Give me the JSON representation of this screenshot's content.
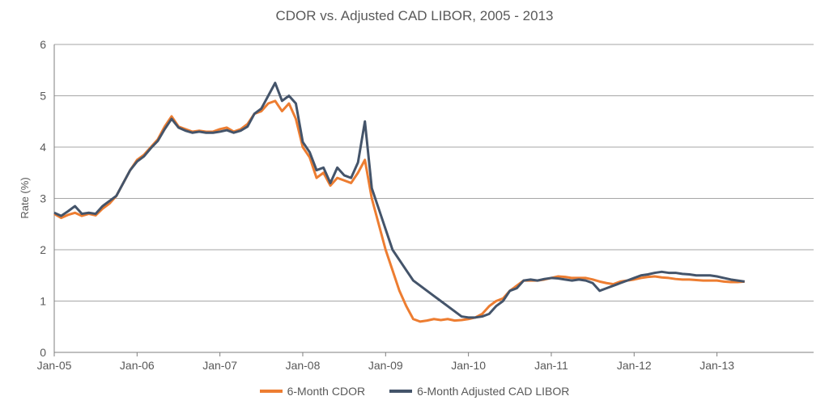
{
  "chart_data": {
    "type": "line",
    "title": "CDOR vs. Adjusted CAD LIBOR, 2005 - 2013",
    "xlabel": "",
    "ylabel": "Rate (%)",
    "ylim": [
      0,
      6
    ],
    "yticks": [
      "0",
      "1",
      "2",
      "3",
      "4",
      "5",
      "6"
    ],
    "xlim": [
      "2005-01",
      "2014-03"
    ],
    "xticks": [
      {
        "date": "2005-01",
        "label": "Jan-05"
      },
      {
        "date": "2006-01",
        "label": "Jan-06"
      },
      {
        "date": "2007-01",
        "label": "Jan-07"
      },
      {
        "date": "2008-01",
        "label": "Jan-08"
      },
      {
        "date": "2009-01",
        "label": "Jan-09"
      },
      {
        "date": "2010-01",
        "label": "Jan-10"
      },
      {
        "date": "2011-01",
        "label": "Jan-11"
      },
      {
        "date": "2012-01",
        "label": "Jan-12"
      },
      {
        "date": "2013-01",
        "label": "Jan-13"
      }
    ],
    "grid": true,
    "legend": "bottom",
    "series": [
      {
        "name": "6-Month CDOR",
        "color": "#ED7D31",
        "points": [
          [
            "2005-01",
            2.7
          ],
          [
            "2005-02",
            2.62
          ],
          [
            "2005-03",
            2.68
          ],
          [
            "2005-04",
            2.72
          ],
          [
            "2005-05",
            2.66
          ],
          [
            "2005-06",
            2.7
          ],
          [
            "2005-07",
            2.67
          ],
          [
            "2005-08",
            2.8
          ],
          [
            "2005-09",
            2.9
          ],
          [
            "2005-10",
            3.05
          ],
          [
            "2005-11",
            3.3
          ],
          [
            "2005-12",
            3.55
          ],
          [
            "2006-01",
            3.75
          ],
          [
            "2006-02",
            3.85
          ],
          [
            "2006-03",
            4.0
          ],
          [
            "2006-04",
            4.15
          ],
          [
            "2006-05",
            4.4
          ],
          [
            "2006-06",
            4.6
          ],
          [
            "2006-07",
            4.4
          ],
          [
            "2006-08",
            4.35
          ],
          [
            "2006-09",
            4.3
          ],
          [
            "2006-10",
            4.32
          ],
          [
            "2006-11",
            4.3
          ],
          [
            "2006-12",
            4.3
          ],
          [
            "2007-01",
            4.35
          ],
          [
            "2007-02",
            4.38
          ],
          [
            "2007-03",
            4.3
          ],
          [
            "2007-04",
            4.35
          ],
          [
            "2007-05",
            4.45
          ],
          [
            "2007-06",
            4.65
          ],
          [
            "2007-07",
            4.7
          ],
          [
            "2007-08",
            4.85
          ],
          [
            "2007-09",
            4.9
          ],
          [
            "2007-10",
            4.7
          ],
          [
            "2007-11",
            4.85
          ],
          [
            "2007-12",
            4.55
          ],
          [
            "2008-01",
            4.0
          ],
          [
            "2008-02",
            3.8
          ],
          [
            "2008-03",
            3.4
          ],
          [
            "2008-04",
            3.5
          ],
          [
            "2008-05",
            3.25
          ],
          [
            "2008-06",
            3.4
          ],
          [
            "2008-07",
            3.35
          ],
          [
            "2008-08",
            3.3
          ],
          [
            "2008-09",
            3.5
          ],
          [
            "2008-10",
            3.75
          ],
          [
            "2008-11",
            3.0
          ],
          [
            "2008-12",
            2.5
          ],
          [
            "2009-01",
            2.0
          ],
          [
            "2009-02",
            1.6
          ],
          [
            "2009-03",
            1.2
          ],
          [
            "2009-04",
            0.9
          ],
          [
            "2009-05",
            0.65
          ],
          [
            "2009-06",
            0.6
          ],
          [
            "2009-07",
            0.62
          ],
          [
            "2009-08",
            0.65
          ],
          [
            "2009-09",
            0.63
          ],
          [
            "2009-10",
            0.65
          ],
          [
            "2009-11",
            0.62
          ],
          [
            "2009-12",
            0.63
          ],
          [
            "2010-01",
            0.65
          ],
          [
            "2010-02",
            0.68
          ],
          [
            "2010-03",
            0.75
          ],
          [
            "2010-04",
            0.9
          ],
          [
            "2010-05",
            1.0
          ],
          [
            "2010-06",
            1.05
          ],
          [
            "2010-07",
            1.2
          ],
          [
            "2010-08",
            1.3
          ],
          [
            "2010-09",
            1.4
          ],
          [
            "2010-10",
            1.4
          ],
          [
            "2010-11",
            1.4
          ],
          [
            "2010-12",
            1.42
          ],
          [
            "2011-01",
            1.45
          ],
          [
            "2011-02",
            1.48
          ],
          [
            "2011-03",
            1.47
          ],
          [
            "2011-04",
            1.45
          ],
          [
            "2011-05",
            1.45
          ],
          [
            "2011-06",
            1.45
          ],
          [
            "2011-07",
            1.42
          ],
          [
            "2011-08",
            1.38
          ],
          [
            "2011-09",
            1.35
          ],
          [
            "2011-10",
            1.33
          ],
          [
            "2011-11",
            1.38
          ],
          [
            "2011-12",
            1.4
          ],
          [
            "2012-01",
            1.42
          ],
          [
            "2012-02",
            1.45
          ],
          [
            "2012-03",
            1.47
          ],
          [
            "2012-04",
            1.48
          ],
          [
            "2012-05",
            1.46
          ],
          [
            "2012-06",
            1.45
          ],
          [
            "2012-07",
            1.43
          ],
          [
            "2012-08",
            1.42
          ],
          [
            "2012-09",
            1.42
          ],
          [
            "2012-10",
            1.41
          ],
          [
            "2012-11",
            1.4
          ],
          [
            "2012-12",
            1.4
          ],
          [
            "2013-01",
            1.4
          ],
          [
            "2013-02",
            1.38
          ],
          [
            "2013-03",
            1.37
          ],
          [
            "2013-04",
            1.37
          ],
          [
            "2013-05",
            1.38
          ]
        ]
      },
      {
        "name": "6-Month Adjusted CAD LIBOR",
        "color": "#44546A",
        "points": [
          [
            "2005-01",
            2.72
          ],
          [
            "2005-02",
            2.66
          ],
          [
            "2005-03",
            2.75
          ],
          [
            "2005-04",
            2.85
          ],
          [
            "2005-05",
            2.7
          ],
          [
            "2005-06",
            2.72
          ],
          [
            "2005-07",
            2.7
          ],
          [
            "2005-08",
            2.85
          ],
          [
            "2005-09",
            2.95
          ],
          [
            "2005-10",
            3.05
          ],
          [
            "2005-11",
            3.3
          ],
          [
            "2005-12",
            3.55
          ],
          [
            "2006-01",
            3.72
          ],
          [
            "2006-02",
            3.82
          ],
          [
            "2006-03",
            3.98
          ],
          [
            "2006-04",
            4.12
          ],
          [
            "2006-05",
            4.35
          ],
          [
            "2006-06",
            4.55
          ],
          [
            "2006-07",
            4.38
          ],
          [
            "2006-08",
            4.32
          ],
          [
            "2006-09",
            4.28
          ],
          [
            "2006-10",
            4.3
          ],
          [
            "2006-11",
            4.28
          ],
          [
            "2006-12",
            4.28
          ],
          [
            "2007-01",
            4.3
          ],
          [
            "2007-02",
            4.33
          ],
          [
            "2007-03",
            4.28
          ],
          [
            "2007-04",
            4.32
          ],
          [
            "2007-05",
            4.4
          ],
          [
            "2007-06",
            4.65
          ],
          [
            "2007-07",
            4.75
          ],
          [
            "2007-08",
            5.0
          ],
          [
            "2007-09",
            5.25
          ],
          [
            "2007-10",
            4.9
          ],
          [
            "2007-11",
            5.0
          ],
          [
            "2007-12",
            4.85
          ],
          [
            "2008-01",
            4.1
          ],
          [
            "2008-02",
            3.9
          ],
          [
            "2008-03",
            3.55
          ],
          [
            "2008-04",
            3.6
          ],
          [
            "2008-05",
            3.3
          ],
          [
            "2008-06",
            3.6
          ],
          [
            "2008-07",
            3.45
          ],
          [
            "2008-08",
            3.4
          ],
          [
            "2008-09",
            3.7
          ],
          [
            "2008-10",
            4.5
          ],
          [
            "2008-11",
            3.2
          ],
          [
            "2008-12",
            2.8
          ],
          [
            "2009-01",
            2.4
          ],
          [
            "2009-02",
            2.0
          ],
          [
            "2009-03",
            1.8
          ],
          [
            "2009-04",
            1.6
          ],
          [
            "2009-05",
            1.4
          ],
          [
            "2009-06",
            1.3
          ],
          [
            "2009-07",
            1.2
          ],
          [
            "2009-08",
            1.1
          ],
          [
            "2009-09",
            1.0
          ],
          [
            "2009-10",
            0.9
          ],
          [
            "2009-11",
            0.8
          ],
          [
            "2009-12",
            0.7
          ],
          [
            "2010-01",
            0.68
          ],
          [
            "2010-02",
            0.68
          ],
          [
            "2010-03",
            0.7
          ],
          [
            "2010-04",
            0.75
          ],
          [
            "2010-05",
            0.9
          ],
          [
            "2010-06",
            1.0
          ],
          [
            "2010-07",
            1.2
          ],
          [
            "2010-08",
            1.25
          ],
          [
            "2010-09",
            1.4
          ],
          [
            "2010-10",
            1.42
          ],
          [
            "2010-11",
            1.4
          ],
          [
            "2010-12",
            1.43
          ],
          [
            "2011-01",
            1.45
          ],
          [
            "2011-02",
            1.44
          ],
          [
            "2011-03",
            1.42
          ],
          [
            "2011-04",
            1.4
          ],
          [
            "2011-05",
            1.42
          ],
          [
            "2011-06",
            1.4
          ],
          [
            "2011-07",
            1.35
          ],
          [
            "2011-08",
            1.2
          ],
          [
            "2011-09",
            1.25
          ],
          [
            "2011-10",
            1.3
          ],
          [
            "2011-11",
            1.35
          ],
          [
            "2011-12",
            1.4
          ],
          [
            "2012-01",
            1.45
          ],
          [
            "2012-02",
            1.5
          ],
          [
            "2012-03",
            1.52
          ],
          [
            "2012-04",
            1.55
          ],
          [
            "2012-05",
            1.57
          ],
          [
            "2012-06",
            1.55
          ],
          [
            "2012-07",
            1.55
          ],
          [
            "2012-08",
            1.53
          ],
          [
            "2012-09",
            1.52
          ],
          [
            "2012-10",
            1.5
          ],
          [
            "2012-11",
            1.5
          ],
          [
            "2012-12",
            1.5
          ],
          [
            "2013-01",
            1.48
          ],
          [
            "2013-02",
            1.45
          ],
          [
            "2013-03",
            1.42
          ],
          [
            "2013-04",
            1.4
          ],
          [
            "2013-05",
            1.38
          ]
        ]
      }
    ]
  }
}
